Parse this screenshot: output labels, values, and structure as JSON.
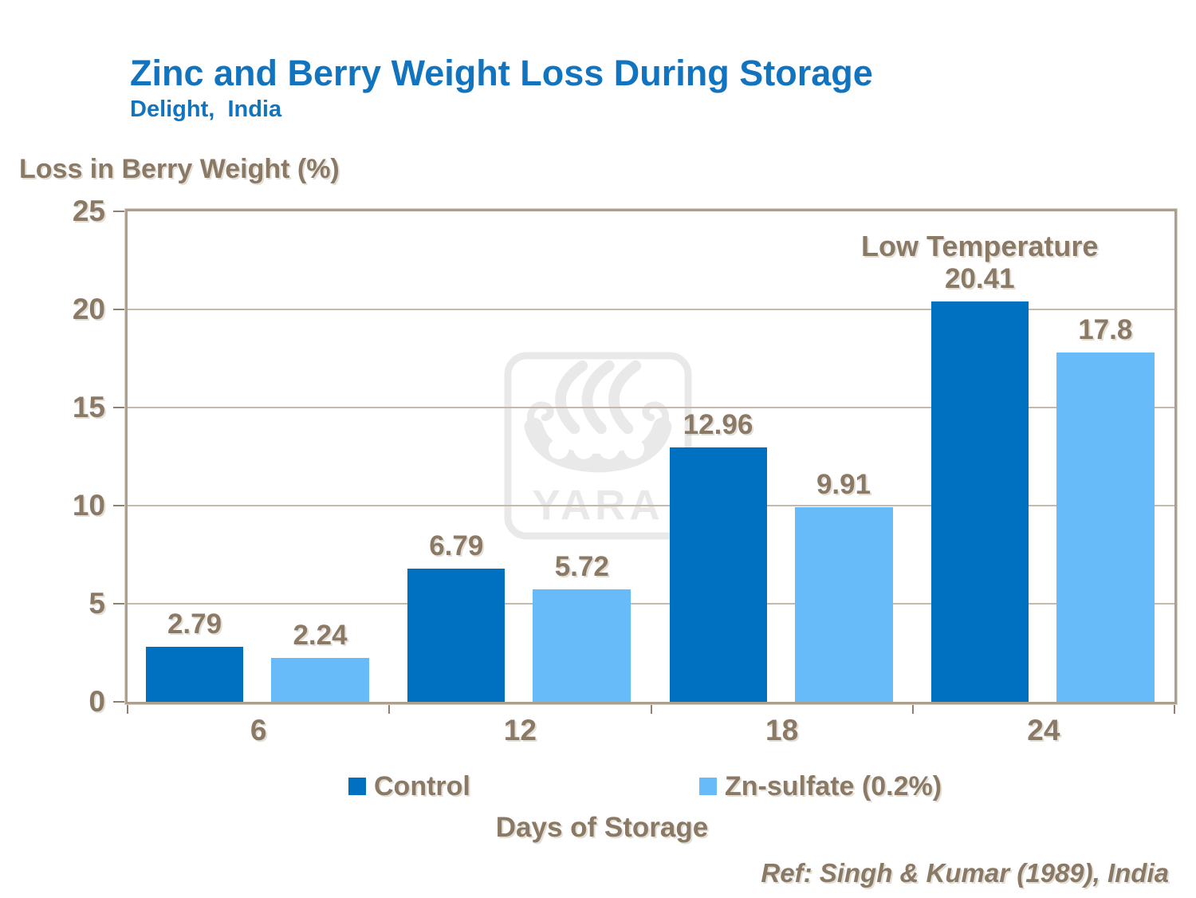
{
  "header": {
    "title": "Zinc and Berry Weight Loss During Storage",
    "subtitle": "Delight,  India"
  },
  "chart_data": {
    "type": "bar",
    "title": "Zinc and Berry Weight Loss During Storage",
    "subtitle": "Delight,  India",
    "categories": [
      "6",
      "12",
      "18",
      "24"
    ],
    "series": [
      {
        "name": "Control",
        "color": "#0070C0",
        "values": [
          2.79,
          6.79,
          12.96,
          20.41
        ],
        "labels": [
          "2.79",
          "6.79",
          "12.96",
          "20.41"
        ]
      },
      {
        "name": "Zn-sulfate (0.2%)",
        "color": "#67BBF8",
        "values": [
          2.24,
          5.72,
          9.91,
          17.8
        ],
        "labels": [
          "2.24",
          "5.72",
          "9.91",
          "17.8"
        ]
      }
    ],
    "xlabel": "Days of Storage",
    "ylabel": "Loss in Berry Weight (%)",
    "ylim": [
      0,
      25
    ],
    "yticks": [
      0,
      5,
      10,
      15,
      20,
      25
    ],
    "grid": "horizontal",
    "legend_position": "bottom",
    "annotation": {
      "text": "Low Temperature",
      "series_index": 0,
      "category_index": 3
    }
  },
  "footer": {
    "reference": "Ref: Singh & Kumar (1989), India"
  },
  "watermark": {
    "label": "YARA"
  },
  "colors": {
    "title_blue": "#1273BE",
    "text_brown": "#8A7965",
    "gridline": "#C4B9AA",
    "frame": "#AC9F8D",
    "tick": "#8F8170",
    "watermark_gray": "#E9E9E9"
  }
}
